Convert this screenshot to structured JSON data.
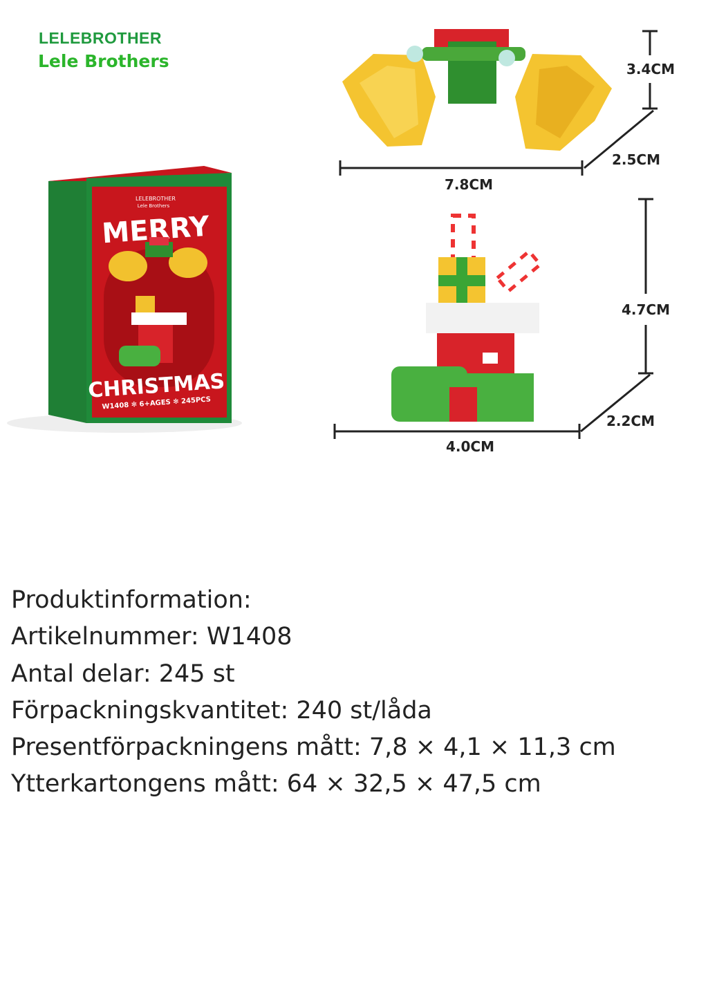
{
  "brand": {
    "line1": "LELEBROTHER",
    "line2": "Lele Brothers"
  },
  "box": {
    "brand_line1": "LELEBROTHER",
    "brand_line2": "Lele Brothers",
    "title_top": "MERRY",
    "title_bottom": "CHRISTMAS",
    "footer": "W1408 ✻ 6+AGES ✻ 245PCS",
    "colors": {
      "red": "#c8161d",
      "green": "#1f8a3a"
    }
  },
  "dimensions": {
    "bell": {
      "height": "3.4CM",
      "depth": "2.5CM",
      "width": "7.8CM"
    },
    "stocking": {
      "height": "4.7CM",
      "depth": "2.2CM",
      "width": "4.0CM"
    }
  },
  "info": {
    "lines": [
      "Produktinformation:",
      "Artikelnummer: W1408",
      "Antal delar: 245 st",
      "Förpackningskvantitet: 240 st/låda",
      "Presentförpackningens mått: 7,8 × 4,1 × 11,3 cm",
      "Ytterkartongens mått: 64 × 32,5 × 47,5 cm"
    ]
  }
}
